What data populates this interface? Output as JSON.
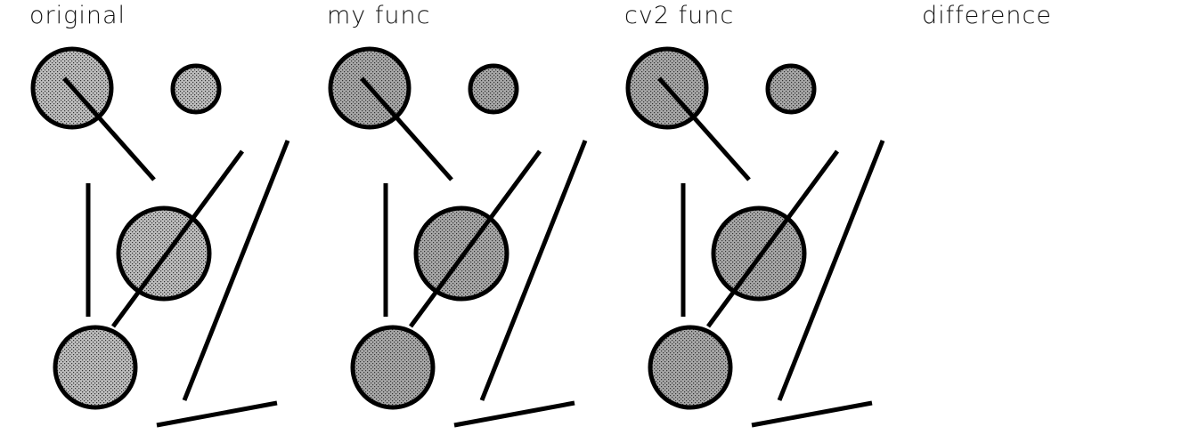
{
  "panels": [
    {
      "label": "original",
      "fill_color": "#bdbdbd",
      "dither": true,
      "shapes_visible": true
    },
    {
      "label": "my func",
      "fill_color": "#a8a8a8",
      "dither": true,
      "shapes_visible": true
    },
    {
      "label": "cv2 func",
      "fill_color": "#a8a8a8",
      "dither": true,
      "shapes_visible": true
    },
    {
      "label": "difference",
      "fill_color": "#ffffff",
      "dither": false,
      "shapes_visible": false
    }
  ],
  "colors": {
    "stroke": "#000000",
    "background": "#ffffff"
  }
}
